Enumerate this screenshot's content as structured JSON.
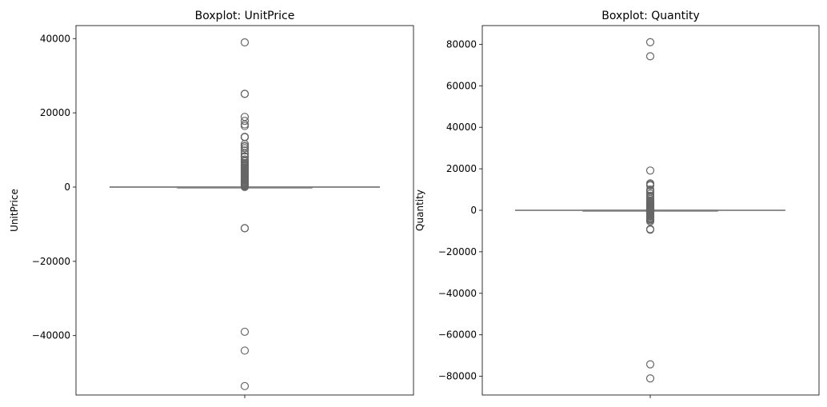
{
  "chart_data": [
    {
      "type": "boxplot",
      "title": "Boxplot: UnitPrice",
      "ylabel": "UnitPrice",
      "xlabel": "",
      "ylim": [
        -56000,
        43500
      ],
      "yticks": [
        -40000,
        -20000,
        0,
        20000,
        40000
      ],
      "ytick_labels": [
        "−40000",
        "−20000",
        "0",
        "20000",
        "40000"
      ],
      "color": "#808080",
      "box": {
        "whisker_low": -38,
        "q1": -1,
        "median": 2,
        "q3": 4,
        "whisker_high": 38
      },
      "outliers": [
        38970,
        25111,
        25111,
        18911,
        17836,
        16888,
        16454,
        13541,
        13474,
        13474,
        13474,
        11586,
        11062,
        10953,
        10468,
        9864,
        8985,
        8286,
        8142,
        7427,
        7006,
        6930,
        6497,
        6208,
        5942,
        5876,
        5694,
        5519,
        5225,
        4992,
        4781,
        4505,
        4287,
        4161,
        3949,
        3702,
        3470,
        3155,
        2878,
        2653,
        2500,
        2382,
        2033,
        1867,
        1715,
        1500,
        1270,
        1100,
        950,
        800,
        650,
        520,
        400,
        300,
        200,
        120,
        80,
        50,
        -11062,
        -11062,
        -38970,
        -44032,
        -53594
      ]
    },
    {
      "type": "boxplot",
      "title": "Boxplot: Quantity",
      "ylabel": "Quantity",
      "xlabel": "",
      "ylim": [
        -89000,
        89000
      ],
      "yticks": [
        -80000,
        -60000,
        -40000,
        -20000,
        0,
        20000,
        40000,
        60000,
        80000
      ],
      "ytick_labels": [
        "−80000",
        "−60000",
        "−40000",
        "−20000",
        "0",
        "20000",
        "40000",
        "60000",
        "80000"
      ],
      "color": "#808080",
      "box": {
        "whisker_low": -14,
        "q1": 1,
        "median": 3,
        "q3": 10,
        "whisker_high": 23
      },
      "outliers": [
        80995,
        74215,
        19152,
        12960,
        12540,
        12000,
        10000,
        9600,
        9000,
        8000,
        7000,
        6400,
        5500,
        4800,
        4300,
        3906,
        3500,
        3114,
        2880,
        2592,
        2400,
        2100,
        1900,
        1600,
        1400,
        1200,
        1000,
        800,
        600,
        500,
        400,
        300,
        200,
        150,
        100,
        80,
        60,
        50,
        40,
        30,
        -30,
        -50,
        -100,
        -200,
        -300,
        -500,
        -800,
        -1000,
        -1300,
        -1600,
        -2000,
        -2400,
        -2800,
        -3100,
        -3667,
        -4000,
        -4300,
        -4830,
        -5368,
        -9058,
        -9360,
        -74215,
        -80995
      ]
    }
  ]
}
